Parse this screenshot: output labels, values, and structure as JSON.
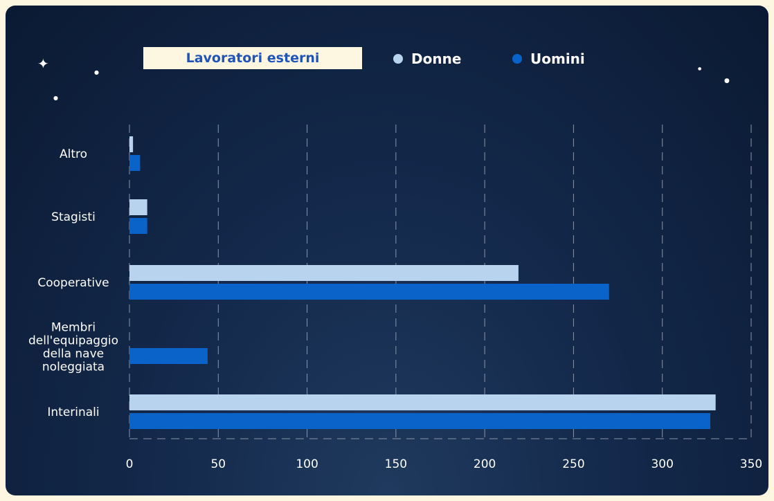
{
  "legend": {
    "title": "Lavoratori esterni",
    "items": [
      {
        "label": "Donne",
        "color": "#b7d3ee"
      },
      {
        "label": "Uomini",
        "color": "#0a63c9"
      }
    ]
  },
  "colors": {
    "background": "#13284a",
    "page": "#fdf6e1",
    "grid": "#8a95a8",
    "text": "#ffffff"
  },
  "chart_data": {
    "type": "bar",
    "orientation": "horizontal",
    "title": "",
    "xlabel": "",
    "ylabel": "",
    "xlim": [
      0,
      350
    ],
    "xticks": [
      0,
      50,
      100,
      150,
      200,
      250,
      300,
      350
    ],
    "grid": true,
    "legend_position": "top",
    "categories": [
      [
        "Altro"
      ],
      [
        "Stagisti"
      ],
      [
        "Cooperative"
      ],
      [
        "Membri",
        "dell'equipaggio",
        "della nave",
        "noleggiata"
      ],
      [
        "Interinali"
      ]
    ],
    "series": [
      {
        "name": "Donne",
        "color": "#b7d3ee",
        "values": [
          2,
          10,
          219,
          0,
          330
        ]
      },
      {
        "name": "Uomini",
        "color": "#0a63c9",
        "values": [
          6,
          10,
          270,
          44,
          327
        ]
      }
    ]
  }
}
